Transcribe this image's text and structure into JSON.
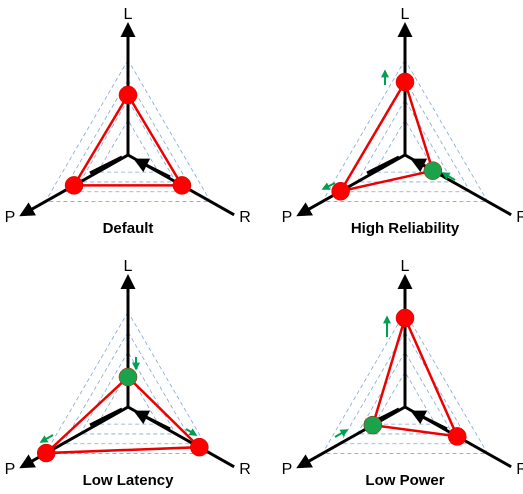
{
  "panels": [
    {
      "caption": "Default",
      "axis_labels": [
        "L",
        "P",
        "R"
      ]
    },
    {
      "caption": "High Reliability",
      "axis_labels": [
        "L",
        "P",
        "R"
      ]
    },
    {
      "caption": "Low Latency",
      "axis_labels": [
        "L",
        "P",
        "R"
      ]
    },
    {
      "caption": "Low Power",
      "axis_labels": [
        "L",
        "P",
        "R"
      ]
    }
  ]
}
